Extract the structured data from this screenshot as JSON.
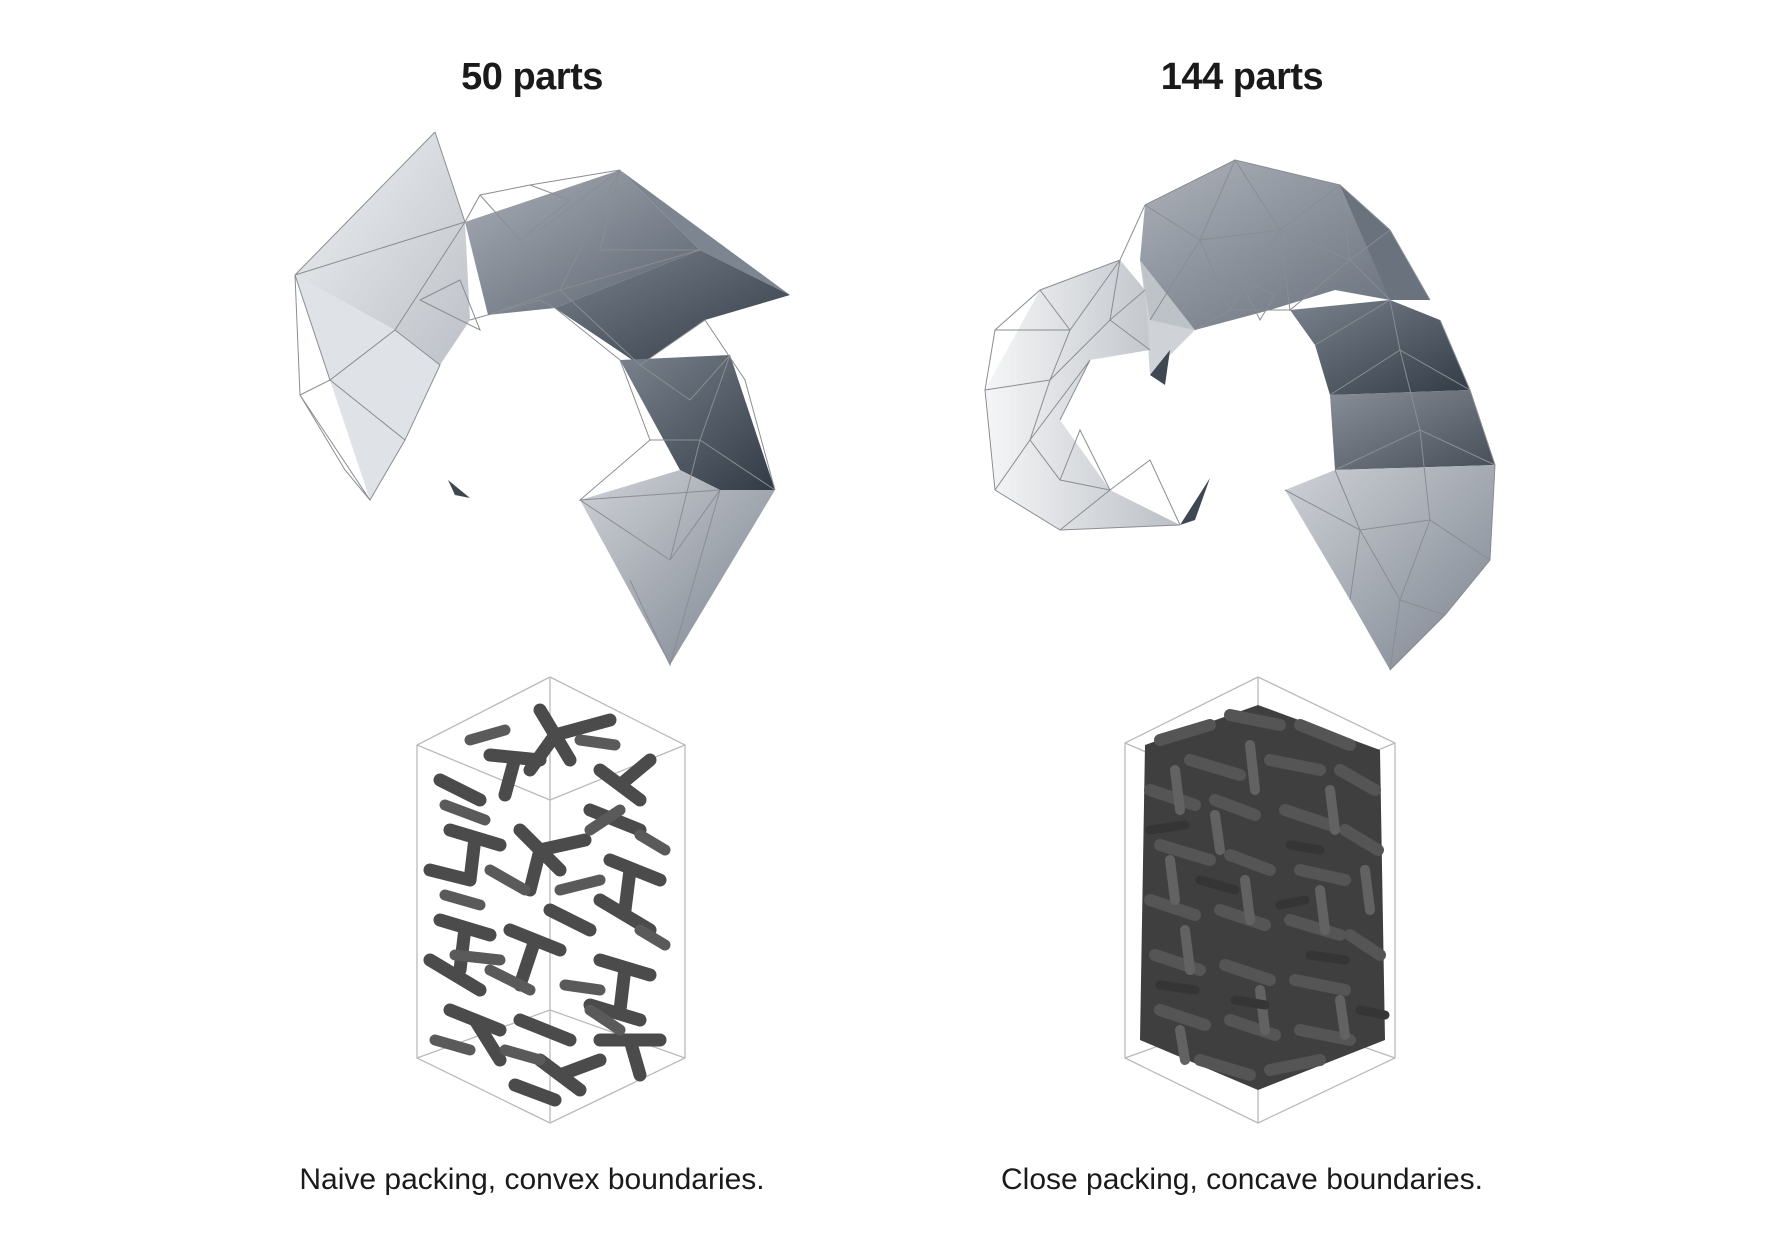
{
  "panels": [
    {
      "title": "50 parts",
      "caption": "Naive packing, convex boundaries."
    },
    {
      "title": "144 parts",
      "caption": "Close packing, concave boundaries."
    }
  ],
  "colors": {
    "surface_light": "#d4d7dc",
    "surface_dark": "#3a4350",
    "parts": "#4a4a4a",
    "wireframe": "#8a8d92"
  }
}
